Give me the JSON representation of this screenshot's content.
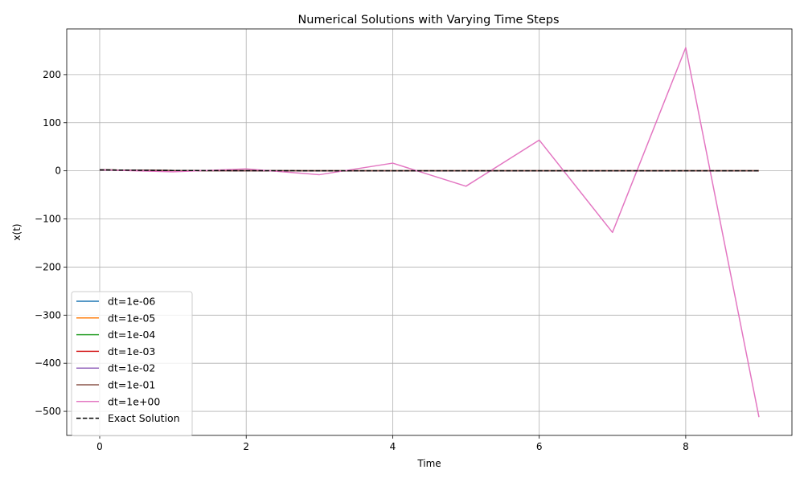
{
  "chart_data": {
    "type": "line",
    "title": "Numerical Solutions with Varying Time Steps",
    "xlabel": "Time",
    "ylabel": "x(t)",
    "xlim": [
      -0.45,
      9.45
    ],
    "ylim": [
      -550,
      295
    ],
    "xticks": [
      0,
      2,
      4,
      6,
      8
    ],
    "yticks": [
      -500,
      -400,
      -300,
      -200,
      -100,
      0,
      100,
      200
    ],
    "ytick_labels": [
      "−500",
      "−400",
      "−300",
      "−200",
      "−100",
      "0",
      "100",
      "200"
    ],
    "grid": true,
    "legend_position": "lower-left",
    "series": [
      {
        "name": "dt=1e-06",
        "color": "#1f77b4",
        "style": "solid",
        "x": [
          0,
          0.25,
          0.5,
          1,
          1.5,
          2,
          3,
          4,
          5,
          6,
          7,
          8,
          9
        ],
        "y": [
          2,
          1.56,
          1.21,
          0.74,
          0.45,
          0.27,
          0.1,
          0.04,
          0.01,
          0.01,
          0,
          0,
          0
        ]
      },
      {
        "name": "dt=1e-05",
        "color": "#ff7f0e",
        "style": "solid",
        "x": [
          0,
          0.25,
          0.5,
          1,
          1.5,
          2,
          3,
          4,
          5,
          6,
          7,
          8,
          9
        ],
        "y": [
          2,
          1.56,
          1.21,
          0.74,
          0.45,
          0.27,
          0.1,
          0.04,
          0.01,
          0.01,
          0,
          0,
          0
        ]
      },
      {
        "name": "dt=1e-04",
        "color": "#2ca02c",
        "style": "solid",
        "x": [
          0,
          0.25,
          0.5,
          1,
          1.5,
          2,
          3,
          4,
          5,
          6,
          7,
          8,
          9
        ],
        "y": [
          2,
          1.56,
          1.21,
          0.74,
          0.45,
          0.27,
          0.1,
          0.04,
          0.01,
          0.01,
          0,
          0,
          0
        ]
      },
      {
        "name": "dt=1e-03",
        "color": "#d62728",
        "style": "solid",
        "x": [
          0,
          0.25,
          0.5,
          1,
          1.5,
          2,
          3,
          4,
          5,
          6,
          7,
          8,
          9
        ],
        "y": [
          2,
          1.56,
          1.21,
          0.74,
          0.45,
          0.27,
          0.1,
          0.04,
          0.01,
          0.01,
          0,
          0,
          0
        ]
      },
      {
        "name": "dt=1e-02",
        "color": "#9467bd",
        "style": "solid",
        "x": [
          0,
          0.25,
          0.5,
          1,
          1.5,
          2,
          3,
          4,
          5,
          6,
          7,
          8,
          9
        ],
        "y": [
          2,
          1.56,
          1.21,
          0.74,
          0.44,
          0.26,
          0.1,
          0.03,
          0.01,
          0,
          0,
          0,
          0
        ]
      },
      {
        "name": "dt=1e-01",
        "color": "#8c564b",
        "style": "solid",
        "x": [
          0,
          0.5,
          1,
          1.5,
          2,
          3,
          4,
          5,
          6,
          7,
          8,
          9
        ],
        "y": [
          2,
          1.18,
          0.7,
          0.41,
          0.24,
          0.08,
          0.03,
          0.01,
          0,
          0,
          0,
          0
        ]
      },
      {
        "name": "dt=1e+00",
        "color": "#e377c2",
        "style": "solid",
        "x": [
          0,
          1,
          2,
          3,
          4,
          5,
          6,
          7,
          8,
          9
        ],
        "y": [
          2,
          -2,
          4,
          -8,
          16,
          -32,
          64,
          -128,
          256,
          -512
        ]
      },
      {
        "name": "Exact Solution",
        "color": "#000000",
        "style": "dashed",
        "x": [
          0,
          0.25,
          0.5,
          1,
          1.5,
          2,
          3,
          4,
          5,
          6,
          7,
          8,
          9
        ],
        "y": [
          2,
          1.56,
          1.21,
          0.74,
          0.45,
          0.27,
          0.1,
          0.04,
          0.01,
          0.01,
          0,
          0,
          0
        ]
      }
    ]
  }
}
